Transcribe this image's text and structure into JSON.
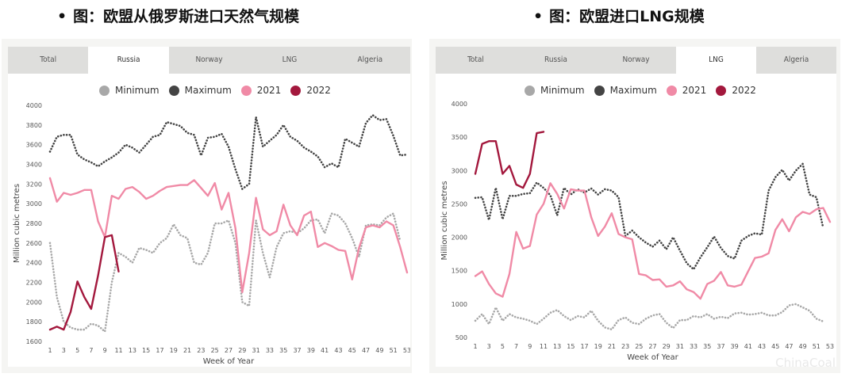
{
  "captions": {
    "bullet": "•",
    "left": "图：欧盟从俄罗斯进口天然气规模",
    "right": "图：欧盟进口LNG规模"
  },
  "tabs": [
    "Total",
    "Russia",
    "Norway",
    "LNG",
    "Algeria"
  ],
  "legend": [
    {
      "label": "Minimum",
      "color": "#a8a8a8"
    },
    {
      "label": "Maximum",
      "color": "#444444"
    },
    {
      "label": "2021",
      "color": "#f08aa6"
    },
    {
      "label": "2022",
      "color": "#a3183d"
    }
  ],
  "watermark": "ChinaCoal",
  "chart_data": [
    {
      "type": "line",
      "active_tab": "Russia",
      "ylabel": "Million cubic metres",
      "xlabel": "Week of Year",
      "ylim": [
        1600,
        4000
      ],
      "y_ticks": [
        1600,
        1800,
        2000,
        2200,
        2400,
        2600,
        2800,
        3000,
        3200,
        3400,
        3600,
        3800,
        4000
      ],
      "xlim": [
        1,
        53
      ],
      "x_ticks": [
        1,
        3,
        5,
        7,
        9,
        11,
        13,
        15,
        17,
        19,
        21,
        23,
        25,
        27,
        29,
        31,
        33,
        35,
        37,
        39,
        41,
        43,
        45,
        47,
        49,
        51,
        53
      ],
      "series": [
        {
          "name": "Minimum",
          "style": "dotted",
          "color": "#a8a8a8",
          "x_start": 1,
          "values": [
            2600,
            2050,
            1800,
            1740,
            1720,
            1720,
            1780,
            1760,
            1700,
            2200,
            2500,
            2460,
            2400,
            2550,
            2530,
            2500,
            2600,
            2650,
            2790,
            2680,
            2650,
            2400,
            2380,
            2500,
            2800,
            2800,
            2830,
            2600,
            2000,
            1960,
            2830,
            2500,
            2250,
            2560,
            2700,
            2720,
            2700,
            2750,
            2830,
            2840,
            2700,
            2900,
            2880,
            2800,
            2650,
            2460,
            2780,
            2790,
            2780,
            2860,
            2900,
            2620
          ]
        },
        {
          "name": "Maximum",
          "style": "dotted",
          "color": "#444444",
          "x_start": 1,
          "values": [
            3530,
            3680,
            3700,
            3700,
            3500,
            3450,
            3420,
            3380,
            3430,
            3470,
            3520,
            3600,
            3570,
            3520,
            3600,
            3680,
            3700,
            3830,
            3810,
            3790,
            3720,
            3700,
            3490,
            3670,
            3680,
            3710,
            3580,
            3350,
            3150,
            3200,
            3880,
            3580,
            3640,
            3700,
            3800,
            3680,
            3640,
            3570,
            3530,
            3480,
            3370,
            3410,
            3370,
            3660,
            3620,
            3580,
            3820,
            3900,
            3850,
            3860,
            3690,
            3490,
            3500
          ]
        },
        {
          "name": "2021",
          "style": "solid",
          "color": "#f08aa6",
          "x_start": 1,
          "values": [
            3260,
            3020,
            3110,
            3090,
            3110,
            3140,
            3140,
            2820,
            2660,
            3080,
            3050,
            3150,
            3170,
            3120,
            3050,
            3080,
            3130,
            3170,
            3180,
            3190,
            3190,
            3240,
            3160,
            3080,
            3210,
            2940,
            3110,
            2750,
            2100,
            2500,
            3060,
            2740,
            2680,
            2720,
            2990,
            2780,
            2680,
            2880,
            2920,
            2560,
            2600,
            2570,
            2530,
            2520,
            2230,
            2550,
            2760,
            2780,
            2760,
            2820,
            2780,
            2560,
            2300
          ]
        },
        {
          "name": "2022",
          "style": "solid",
          "color": "#a3183d",
          "x_start": 1,
          "values": [
            1720,
            1750,
            1720,
            1900,
            2210,
            2050,
            1930,
            2270,
            2660,
            2680,
            2310
          ]
        }
      ]
    },
    {
      "type": "line",
      "active_tab": "LNG",
      "ylabel": "Million cubic metres",
      "xlabel": "Week of Year",
      "ylim": [
        500,
        4000
      ],
      "y_ticks": [
        500,
        1000,
        1500,
        2000,
        2500,
        3000,
        3500,
        4000
      ],
      "xlim": [
        1,
        53
      ],
      "x_ticks": [
        1,
        3,
        5,
        7,
        9,
        11,
        13,
        15,
        17,
        19,
        21,
        23,
        25,
        27,
        29,
        31,
        33,
        35,
        37,
        39,
        41,
        43,
        45,
        47,
        49,
        51,
        53
      ],
      "series": [
        {
          "name": "Minimum",
          "style": "dotted",
          "color": "#a8a8a8",
          "x_start": 1,
          "values": [
            750,
            850,
            700,
            950,
            750,
            850,
            800,
            780,
            750,
            700,
            780,
            870,
            910,
            820,
            760,
            820,
            800,
            900,
            750,
            650,
            620,
            760,
            800,
            720,
            700,
            780,
            830,
            850,
            720,
            640,
            760,
            760,
            820,
            800,
            850,
            780,
            810,
            790,
            860,
            870,
            840,
            850,
            870,
            830,
            830,
            880,
            980,
            1000,
            950,
            900,
            780,
            740
          ]
        },
        {
          "name": "Maximum",
          "style": "dotted",
          "color": "#444444",
          "x_start": 1,
          "values": [
            2590,
            2600,
            2260,
            2740,
            2270,
            2620,
            2620,
            2650,
            2660,
            2820,
            2740,
            2630,
            2330,
            2740,
            2640,
            2720,
            2670,
            2730,
            2640,
            2720,
            2700,
            2600,
            2020,
            2100,
            2000,
            1920,
            1860,
            1950,
            1820,
            2000,
            1800,
            1610,
            1520,
            1700,
            1850,
            2010,
            1840,
            1720,
            1680,
            1950,
            2020,
            2060,
            2040,
            2700,
            2900,
            3010,
            2850,
            3000,
            3100,
            2640,
            2600,
            2140
          ]
        },
        {
          "name": "2021",
          "style": "solid",
          "color": "#f08aa6",
          "x_start": 1,
          "values": [
            1420,
            1490,
            1300,
            1160,
            1110,
            1450,
            2080,
            1830,
            1870,
            2340,
            2500,
            2810,
            2650,
            2430,
            2720,
            2700,
            2700,
            2300,
            2020,
            2160,
            2360,
            2050,
            2000,
            1970,
            1450,
            1430,
            1360,
            1370,
            1260,
            1280,
            1340,
            1220,
            1180,
            1080,
            1300,
            1350,
            1480,
            1280,
            1260,
            1290,
            1490,
            1690,
            1710,
            1760,
            2110,
            2270,
            2090,
            2300,
            2380,
            2350,
            2420,
            2440,
            2230
          ]
        },
        {
          "name": "2022",
          "style": "solid",
          "color": "#a3183d",
          "x_start": 1,
          "values": [
            2950,
            3400,
            3440,
            3440,
            2950,
            3070,
            2790,
            2740,
            2950,
            3560,
            3580
          ]
        }
      ]
    }
  ]
}
